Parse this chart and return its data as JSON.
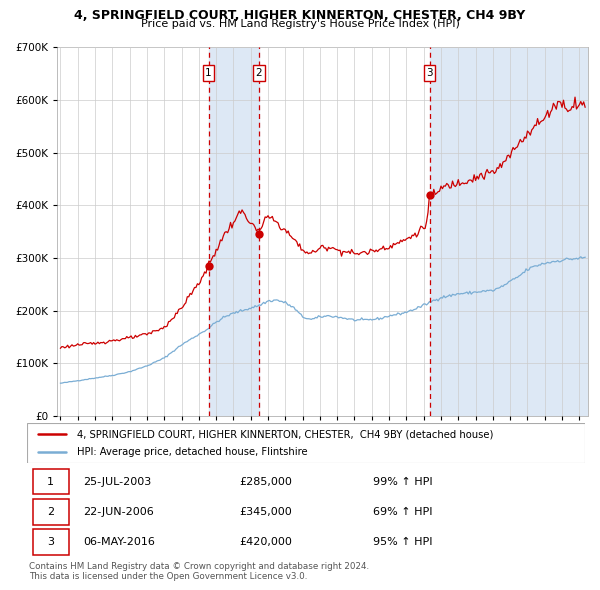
{
  "title1": "4, SPRINGFIELD COURT, HIGHER KINNERTON, CHESTER, CH4 9BY",
  "title2": "Price paid vs. HM Land Registry's House Price Index (HPI)",
  "background_color": "#ffffff",
  "plot_bg": "#ffffff",
  "red_line_color": "#cc0000",
  "blue_line_color": "#7aadd4",
  "span_color": "#dde8f5",
  "grid_color": "#cccccc",
  "transaction_dates": [
    2003.56,
    2006.47,
    2016.34
  ],
  "transaction_prices": [
    285000,
    345000,
    420000
  ],
  "transaction_labels": [
    "1",
    "2",
    "3"
  ],
  "legend_line1": "4, SPRINGFIELD COURT, HIGHER KINNERTON, CHESTER,  CH4 9BY (detached house)",
  "legend_line2": "HPI: Average price, detached house, Flintshire",
  "table_rows": [
    [
      "1",
      "25-JUL-2003",
      "£285,000",
      "99% ↑ HPI"
    ],
    [
      "2",
      "22-JUN-2006",
      "£345,000",
      "69% ↑ HPI"
    ],
    [
      "3",
      "06-MAY-2016",
      "£420,000",
      "95% ↑ HPI"
    ]
  ],
  "copyright_text": "Contains HM Land Registry data © Crown copyright and database right 2024.\nThis data is licensed under the Open Government Licence v3.0.",
  "ylim": [
    0,
    700000
  ],
  "xlim_start": 1994.8,
  "xlim_end": 2025.5
}
